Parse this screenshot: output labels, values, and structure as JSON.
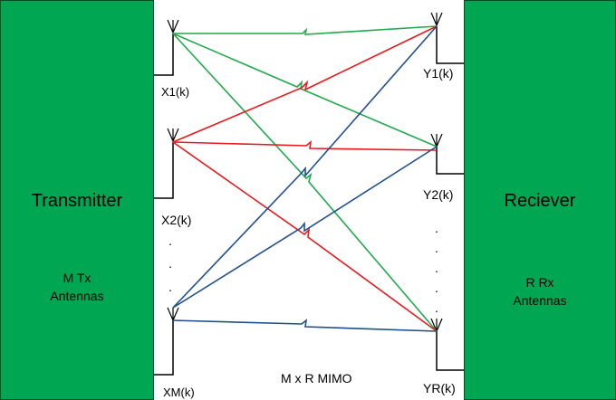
{
  "transmitter": {
    "title": "Transmitter",
    "line1": "M Tx",
    "line2": "Antennas"
  },
  "receiver": {
    "title": "Reciever",
    "line1": "R Rx",
    "line2": "Antennas"
  },
  "tx_labels": [
    "X1(k)",
    "X2(k)",
    "XM(k)"
  ],
  "rx_labels": [
    "Y1(k)",
    "Y2(k)",
    "YR(k)"
  ],
  "caption": "M x R MIMO",
  "colors": {
    "block": "#00a651",
    "link_from_x1": "#1faa4b",
    "link_from_x2": "#e8191c",
    "link_from_xm": "#1f4e8c"
  }
}
